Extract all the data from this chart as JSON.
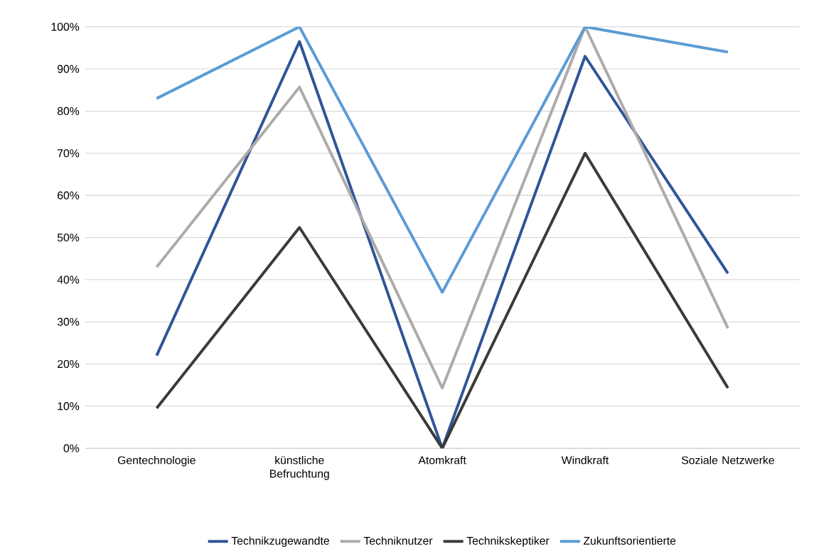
{
  "chart_data": {
    "type": "line",
    "categories": [
      "Gentechnologie",
      "künstliche Befruchtung",
      "Atomkraft",
      "Windkraft",
      "Soziale Netzwerke"
    ],
    "series": [
      {
        "name": "Technikzugewandte",
        "color": "#2f5597",
        "values": [
          22,
          96.5,
          0,
          93,
          41.5
        ]
      },
      {
        "name": "Techniknutzer",
        "color": "#aeaaaa",
        "values": [
          43,
          85.7,
          14.3,
          100,
          28.5
        ]
      },
      {
        "name": "Technikskeptiker",
        "color": "#3a3a3a",
        "values": [
          9.5,
          52.4,
          0,
          70,
          14.3
        ]
      },
      {
        "name": "Zukunftsorientierte",
        "color": "#5b9bd5",
        "values": [
          83,
          100,
          37,
          100,
          94
        ]
      }
    ],
    "ylim": [
      0,
      100
    ],
    "yticks": [
      {
        "value": 0,
        "label": "0%"
      },
      {
        "value": 10,
        "label": "10%"
      },
      {
        "value": 20,
        "label": "20%"
      },
      {
        "value": 30,
        "label": "30%"
      },
      {
        "value": 40,
        "label": "40%"
      },
      {
        "value": 50,
        "label": "50%"
      },
      {
        "value": 60,
        "label": "60%"
      },
      {
        "value": 70,
        "label": "70%"
      },
      {
        "value": 80,
        "label": "80%"
      },
      {
        "value": 90,
        "label": "90%"
      },
      {
        "value": 100,
        "label": "100%"
      }
    ],
    "grid": "y",
    "legend": "bottom"
  }
}
